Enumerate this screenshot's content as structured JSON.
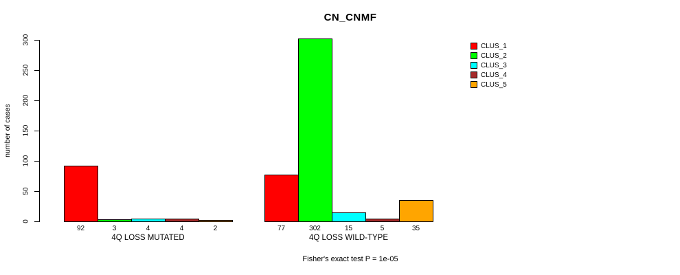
{
  "title": "CN_CNMF",
  "footnote": "Fisher's exact test P = 1e-05",
  "y_axis": {
    "label": "number of cases",
    "ticks": [
      0,
      50,
      100,
      150,
      200,
      250,
      300
    ]
  },
  "legend": {
    "entries": [
      {
        "label": "CLUS_1",
        "color": "#FF0000"
      },
      {
        "label": "CLUS_2",
        "color": "#00FF00"
      },
      {
        "label": "CLUS_3",
        "color": "#00FFFF"
      },
      {
        "label": "CLUS_4",
        "color": "#A52A2A"
      },
      {
        "label": "CLUS_5",
        "color": "#FFA500"
      }
    ]
  },
  "chart_data": {
    "type": "bar",
    "title": "CN_CNMF",
    "xlabel": "",
    "ylabel": "number of cases",
    "ylim": [
      0,
      300
    ],
    "grid": false,
    "legend_position": "top-right",
    "categories": [
      "4Q LOSS MUTATED",
      "4Q LOSS WILD-TYPE"
    ],
    "series": [
      {
        "name": "CLUS_1",
        "color": "#FF0000",
        "values": [
          92,
          77
        ]
      },
      {
        "name": "CLUS_2",
        "color": "#00FF00",
        "values": [
          3,
          302
        ]
      },
      {
        "name": "CLUS_3",
        "color": "#00FFFF",
        "values": [
          4,
          15
        ]
      },
      {
        "name": "CLUS_4",
        "color": "#A52A2A",
        "values": [
          4,
          5
        ]
      },
      {
        "name": "CLUS_5",
        "color": "#FFA500",
        "values": [
          2,
          35
        ]
      }
    ],
    "bar_value_labels": [
      [
        "92",
        "3",
        "4",
        "4",
        "2"
      ],
      [
        "77",
        "302",
        "15",
        "5",
        "35"
      ]
    ],
    "annotation": "Fisher's exact test P = 1e-05"
  }
}
